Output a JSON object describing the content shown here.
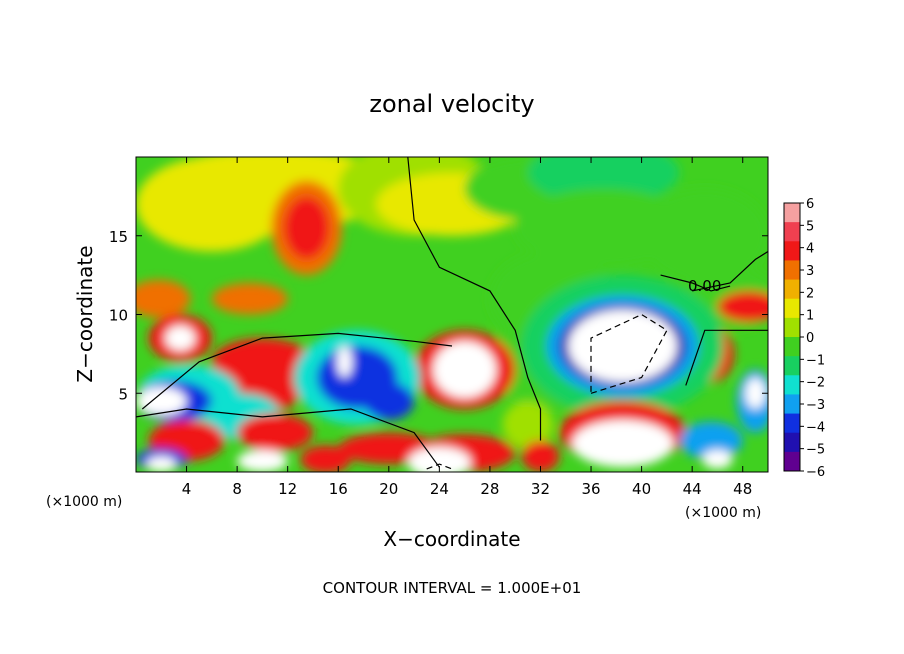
{
  "chart_data": {
    "type": "heatmap",
    "title": "zonal velocity",
    "xlabel": "X−coordinate",
    "ylabel": "Z−coordinate",
    "x_units": "(×1000 m)",
    "z_units": "(×1000 m)",
    "xlim": [
      0,
      50
    ],
    "ylim": [
      0,
      20
    ],
    "x_ticks": [
      "4",
      "8",
      "12",
      "16",
      "20",
      "24",
      "28",
      "32",
      "36",
      "40",
      "44",
      "48"
    ],
    "y_ticks": [
      "5",
      "10",
      "15"
    ],
    "footer": "CONTOUR INTERVAL = 1.000E+01",
    "contour_label": "0.00",
    "colorbar": {
      "labels": [
        "6",
        "5",
        "4",
        "3",
        "2",
        "1",
        "0",
        "−1",
        "−2",
        "−3",
        "−4",
        "−5",
        "−6"
      ],
      "colors": [
        "#f5a0a0",
        "#f04050",
        "#f01818",
        "#f07000",
        "#f0b000",
        "#e8e800",
        "#a0e000",
        "#40d020",
        "#18d060",
        "#10e0d0",
        "#10a0f0",
        "#1030e0",
        "#2010b0",
        "#600090"
      ]
    }
  }
}
